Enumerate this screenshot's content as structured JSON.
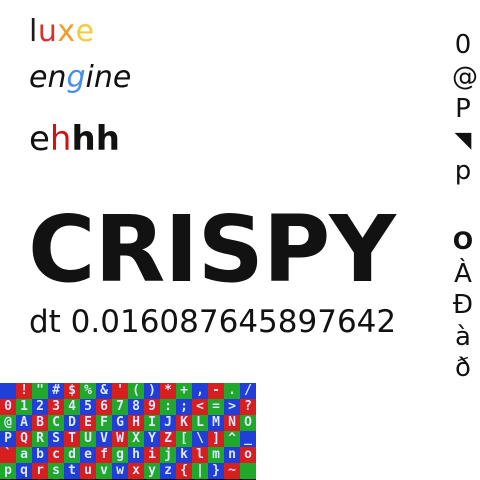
{
  "logo": {
    "luxe": [
      {
        "ch": "l",
        "color": "#1a1a1a"
      },
      {
        "ch": "u",
        "color": "#d8322d"
      },
      {
        "ch": "x",
        "color": "#f39b28"
      },
      {
        "ch": "e",
        "color": "#f5cb3c"
      }
    ],
    "engine": [
      {
        "ch": "en",
        "color": "#111111"
      },
      {
        "ch": "g",
        "color": "#4a8fe6"
      },
      {
        "ch": "ine",
        "color": "#111111"
      }
    ]
  },
  "ehhh": [
    {
      "ch": "e",
      "color": "#111111",
      "weight": "normal"
    },
    {
      "ch": "h",
      "color": "#cc1414",
      "weight": "normal"
    },
    {
      "ch": "h",
      "color": "#111111",
      "weight": "bold"
    },
    {
      "ch": "h",
      "color": "#111111",
      "weight": "bold"
    }
  ],
  "headline": "CRISPY",
  "dt_text": "dt 0.016087645897642",
  "right_column": [
    {
      "name": "glyph-zero",
      "ch": "0"
    },
    {
      "name": "glyph-at",
      "ch": "@"
    },
    {
      "name": "glyph-P",
      "ch": "P"
    },
    {
      "name": "glyph-backtick",
      "ch": "◥"
    },
    {
      "name": "glyph-p",
      "ch": "p"
    },
    {
      "name": "glyph-ring",
      "ch": "O"
    },
    {
      "name": "glyph-A-grave",
      "ch": "À"
    },
    {
      "name": "glyph-D-stroke",
      "ch": "Đ"
    },
    {
      "name": "glyph-a-grave",
      "ch": "à"
    },
    {
      "name": "glyph-eth",
      "ch": "ð"
    }
  ],
  "atlas": {
    "rows": [
      " !\"#$%&'()*+,-./",
      "0123456789:;<=>?",
      "@ABCDEFGHIJKLMNO",
      "PQRSTUVWXYZ[\\]^_",
      "`abcdefghijklmno",
      "pqrstuvwxyz{|}~ "
    ],
    "colors": [
      "#1f3fd8",
      "#d81f1f",
      "#1fa82a"
    ]
  }
}
